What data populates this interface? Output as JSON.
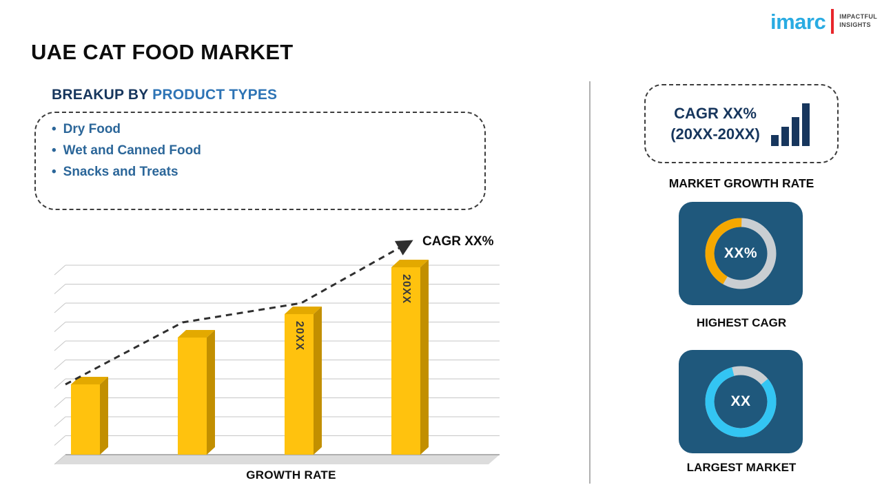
{
  "title": "UAE CAT FOOD MARKET",
  "logo": {
    "brand": "imarc",
    "tagline1": "IMPACTFUL",
    "tagline2": "INSIGHTS"
  },
  "breakup": {
    "heading_prefix": "BREAKUP BY",
    "heading_highlight": "PRODUCT TYPES",
    "items": [
      "Dry Food",
      "Wet and Canned Food",
      "Snacks and Treats"
    ]
  },
  "chart_data": [
    {
      "id": "growth-bar-chart",
      "type": "bar",
      "title": "",
      "xlabel": "GROWTH RATE",
      "ylabel": "",
      "ylim": [
        0,
        100
      ],
      "grid": true,
      "categories": [
        "",
        "",
        "20XX",
        "20XX"
      ],
      "values": [
        36,
        60,
        72,
        96
      ],
      "bar_labels": [
        "",
        "",
        "20XX",
        "20XX"
      ],
      "bar_color": "#FFC20E",
      "annotation": "CAGR XX%",
      "trend": "dashed-arrow-rising"
    },
    {
      "id": "highest-cagr-donut",
      "type": "pie",
      "center_label": "XX%",
      "caption": "HIGHEST CAGR",
      "start_angle_deg": 120,
      "slices": [
        {
          "name": "cagr",
          "value": 42,
          "color": "#F5A800"
        },
        {
          "name": "remainder",
          "value": 58,
          "color": "#C9CED2"
        }
      ]
    },
    {
      "id": "largest-market-donut",
      "type": "pie",
      "center_label": "XX",
      "caption": "LARGEST MARKET",
      "start_angle_deg": -40,
      "slices": [
        {
          "name": "market",
          "value": 82,
          "color": "#33C5F3"
        },
        {
          "name": "remainder",
          "value": 18,
          "color": "#C9CED2"
        }
      ]
    }
  ],
  "right_panel": {
    "cagr_line1": "CAGR XX%",
    "cagr_line2": "(20XX-20XX)",
    "market_growth_label": "MARKET GROWTH RATE"
  },
  "colors": {
    "bar_yellow": "#FFC20E",
    "bar_side": "#C28F00",
    "bar_top": "#E3A900",
    "tile_blue": "#1F587C",
    "donut_track": "#C9CED2",
    "donut_orange": "#F5A800",
    "donut_cyan": "#33C5F3",
    "navy": "#17365D",
    "heading_blue": "#2E74B5",
    "bullet_blue": "#2B6699",
    "logo_cyan": "#29ABE2",
    "logo_red": "#E8262B"
  }
}
